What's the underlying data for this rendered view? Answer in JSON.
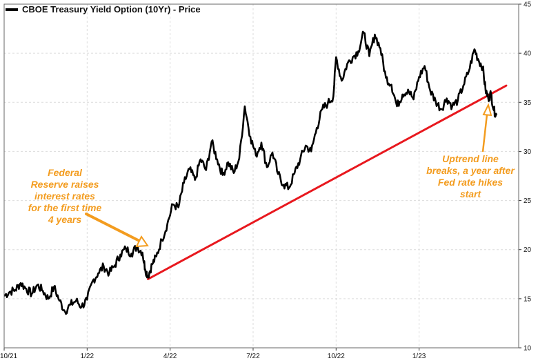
{
  "legend": {
    "label": "CBOE Treasury Yield Option (10Yr) - Price"
  },
  "annotations": {
    "fed": "Federal Reserve raises interest rates for the first time 4 years",
    "breakout": "Uptrend line breaks, a year after Fed rate hikes start"
  },
  "colors": {
    "price_line": "#000000",
    "trend_line": "#e8181e",
    "annotation": "#f39c1f",
    "grid": "#dcdcdc"
  },
  "chart_data": {
    "type": "line",
    "title": "",
    "xlabel": "",
    "ylabel": "",
    "ylim": [
      10,
      45
    ],
    "yticks": [
      10,
      15,
      20,
      25,
      30,
      35,
      40,
      45
    ],
    "xticks": [
      {
        "label": "10/21",
        "x": 0
      },
      {
        "label": "1/22",
        "x": 3
      },
      {
        "label": "4/22",
        "x": 6
      },
      {
        "label": "7/22",
        "x": 9
      },
      {
        "label": "10/22",
        "x": 12
      },
      {
        "label": "1/23",
        "x": 15
      }
    ],
    "grid": true,
    "legend_position": "top-left",
    "series": [
      {
        "name": "CBOE Treasury Yield Option (10Yr) - Price",
        "points": [
          [
            0,
            15.3
          ],
          [
            0.2,
            15.7
          ],
          [
            0.4,
            15.9
          ],
          [
            0.6,
            16.6
          ],
          [
            0.8,
            16.0
          ],
          [
            1.0,
            15.5
          ],
          [
            1.2,
            16.4
          ],
          [
            1.4,
            15.8
          ],
          [
            1.6,
            15.0
          ],
          [
            1.8,
            16.2
          ],
          [
            2.0,
            14.8
          ],
          [
            2.2,
            13.7
          ],
          [
            2.4,
            14.4
          ],
          [
            2.6,
            14.8
          ],
          [
            2.8,
            14.2
          ],
          [
            3.0,
            14.9
          ],
          [
            3.2,
            16.8
          ],
          [
            3.4,
            17.6
          ],
          [
            3.6,
            18.3
          ],
          [
            3.8,
            17.6
          ],
          [
            4.0,
            18.4
          ],
          [
            4.2,
            19.5
          ],
          [
            4.4,
            20.1
          ],
          [
            4.6,
            19.6
          ],
          [
            4.8,
            20.3
          ],
          [
            5.0,
            19.7
          ],
          [
            5.1,
            18.0
          ],
          [
            5.2,
            17.3
          ],
          [
            5.35,
            18.5
          ],
          [
            5.5,
            19.3
          ],
          [
            5.7,
            21.0
          ],
          [
            5.9,
            22.6
          ],
          [
            6.1,
            24.6
          ],
          [
            6.3,
            24.3
          ],
          [
            6.5,
            26.8
          ],
          [
            6.7,
            28.2
          ],
          [
            6.9,
            27.1
          ],
          [
            7.1,
            29.2
          ],
          [
            7.3,
            28.1
          ],
          [
            7.5,
            31.0
          ],
          [
            7.7,
            29.2
          ],
          [
            7.9,
            27.6
          ],
          [
            8.1,
            28.9
          ],
          [
            8.3,
            27.8
          ],
          [
            8.5,
            29.3
          ],
          [
            8.7,
            34.6
          ],
          [
            8.9,
            31.5
          ],
          [
            9.1,
            29.6
          ],
          [
            9.3,
            30.9
          ],
          [
            9.5,
            28.4
          ],
          [
            9.7,
            29.9
          ],
          [
            9.9,
            27.7
          ],
          [
            10.1,
            26.6
          ],
          [
            10.3,
            26.3
          ],
          [
            10.5,
            27.8
          ],
          [
            10.7,
            29.2
          ],
          [
            10.9,
            30.6
          ],
          [
            11.1,
            30.0
          ],
          [
            11.3,
            32.4
          ],
          [
            11.5,
            34.3
          ],
          [
            11.7,
            34.9
          ],
          [
            11.9,
            35.6
          ],
          [
            12.0,
            39.6
          ],
          [
            12.2,
            37.2
          ],
          [
            12.4,
            38.9
          ],
          [
            12.6,
            39.6
          ],
          [
            12.8,
            40.2
          ],
          [
            13.0,
            42.1
          ],
          [
            13.2,
            39.7
          ],
          [
            13.4,
            41.9
          ],
          [
            13.6,
            40.5
          ],
          [
            13.8,
            37.5
          ],
          [
            14.0,
            36.8
          ],
          [
            14.2,
            34.6
          ],
          [
            14.4,
            35.8
          ],
          [
            14.6,
            36.3
          ],
          [
            14.8,
            35.3
          ],
          [
            15.0,
            37.6
          ],
          [
            15.2,
            38.7
          ],
          [
            15.4,
            36.2
          ],
          [
            15.6,
            35.1
          ],
          [
            15.8,
            34.3
          ],
          [
            16.0,
            35.4
          ],
          [
            16.2,
            34.6
          ],
          [
            16.4,
            35.2
          ],
          [
            16.6,
            36.7
          ],
          [
            16.8,
            38.2
          ],
          [
            17.0,
            40.4
          ],
          [
            17.15,
            39.3
          ],
          [
            17.3,
            38.6
          ],
          [
            17.4,
            36.3
          ],
          [
            17.5,
            35.4
          ],
          [
            17.6,
            35.9
          ],
          [
            17.7,
            34.2
          ],
          [
            17.8,
            33.7
          ]
        ]
      },
      {
        "name": "Uptrend line",
        "points": [
          [
            5.2,
            17.0
          ],
          [
            18.15,
            36.7
          ]
        ]
      }
    ]
  }
}
